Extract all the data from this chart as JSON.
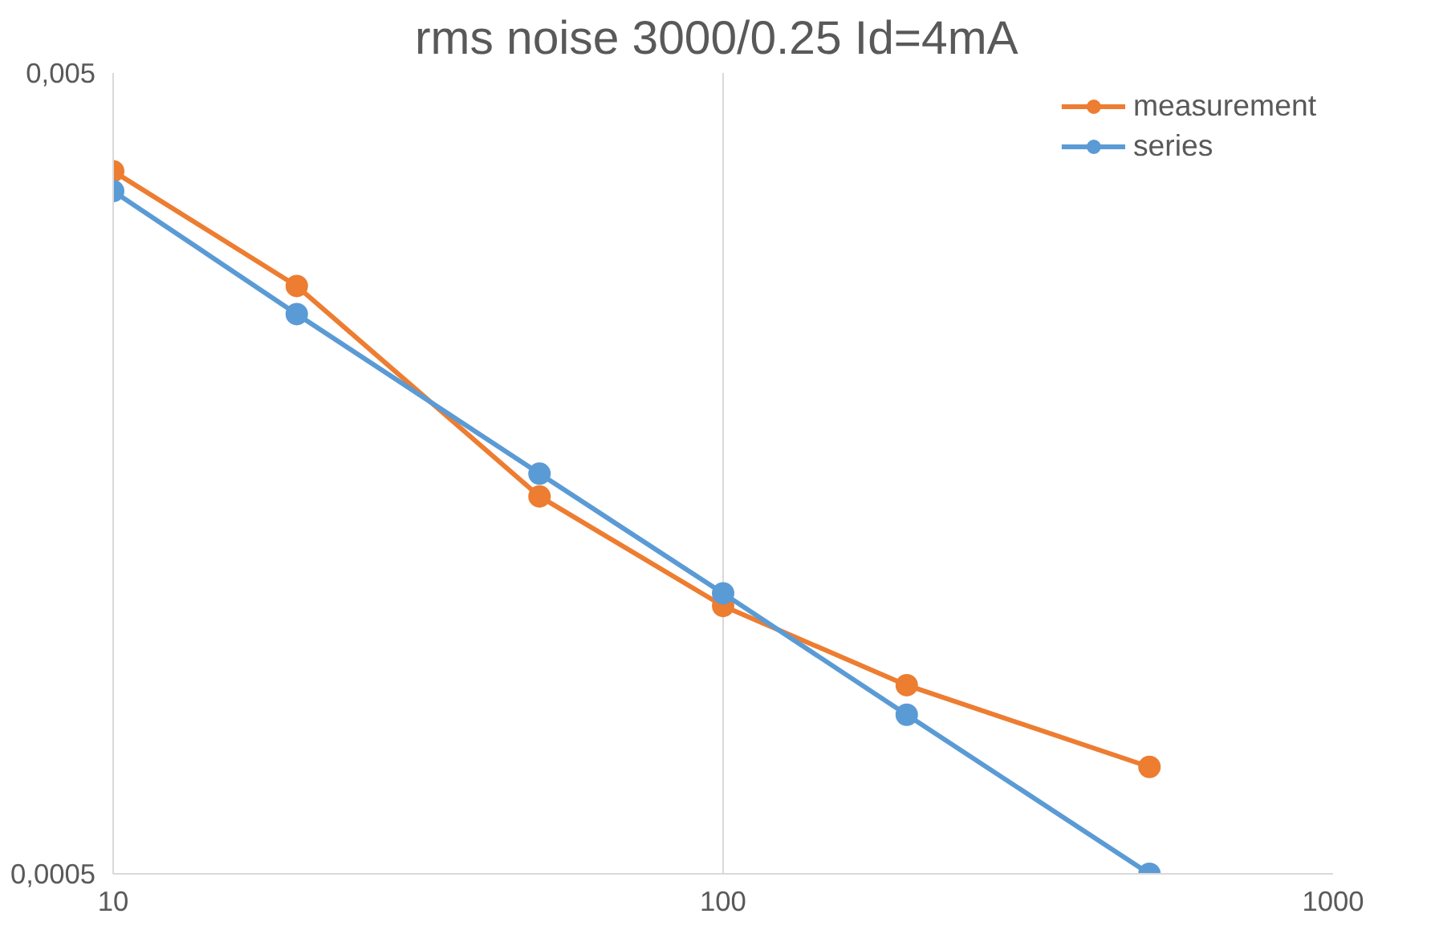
{
  "chart_data": {
    "type": "line",
    "title": "rms noise 3000/0.25  Id=4mA",
    "log": "xy",
    "x": [
      10,
      20,
      50,
      100,
      200,
      500
    ],
    "series": [
      {
        "name": "measurement",
        "color": "#ed7d31",
        "values": [
          0.00377,
          0.00271,
          0.00148,
          0.00108,
          0.00086,
          0.00068
        ]
      },
      {
        "name": "series",
        "color": "#5b9bd5",
        "values": [
          0.00356,
          0.0025,
          0.00158,
          0.00112,
          0.00079,
          0.0005
        ]
      }
    ],
    "xlim": [
      10,
      1000
    ],
    "ylim": [
      0.0005,
      0.005
    ],
    "xticks": [
      10,
      100,
      1000
    ],
    "yticks": [
      {
        "value": 0.0005,
        "label": "0,0005"
      },
      {
        "value": 0.005,
        "label": "0,005"
      }
    ],
    "grid": "x",
    "legend": "top right",
    "marker": "circle",
    "line_style": "solid"
  }
}
